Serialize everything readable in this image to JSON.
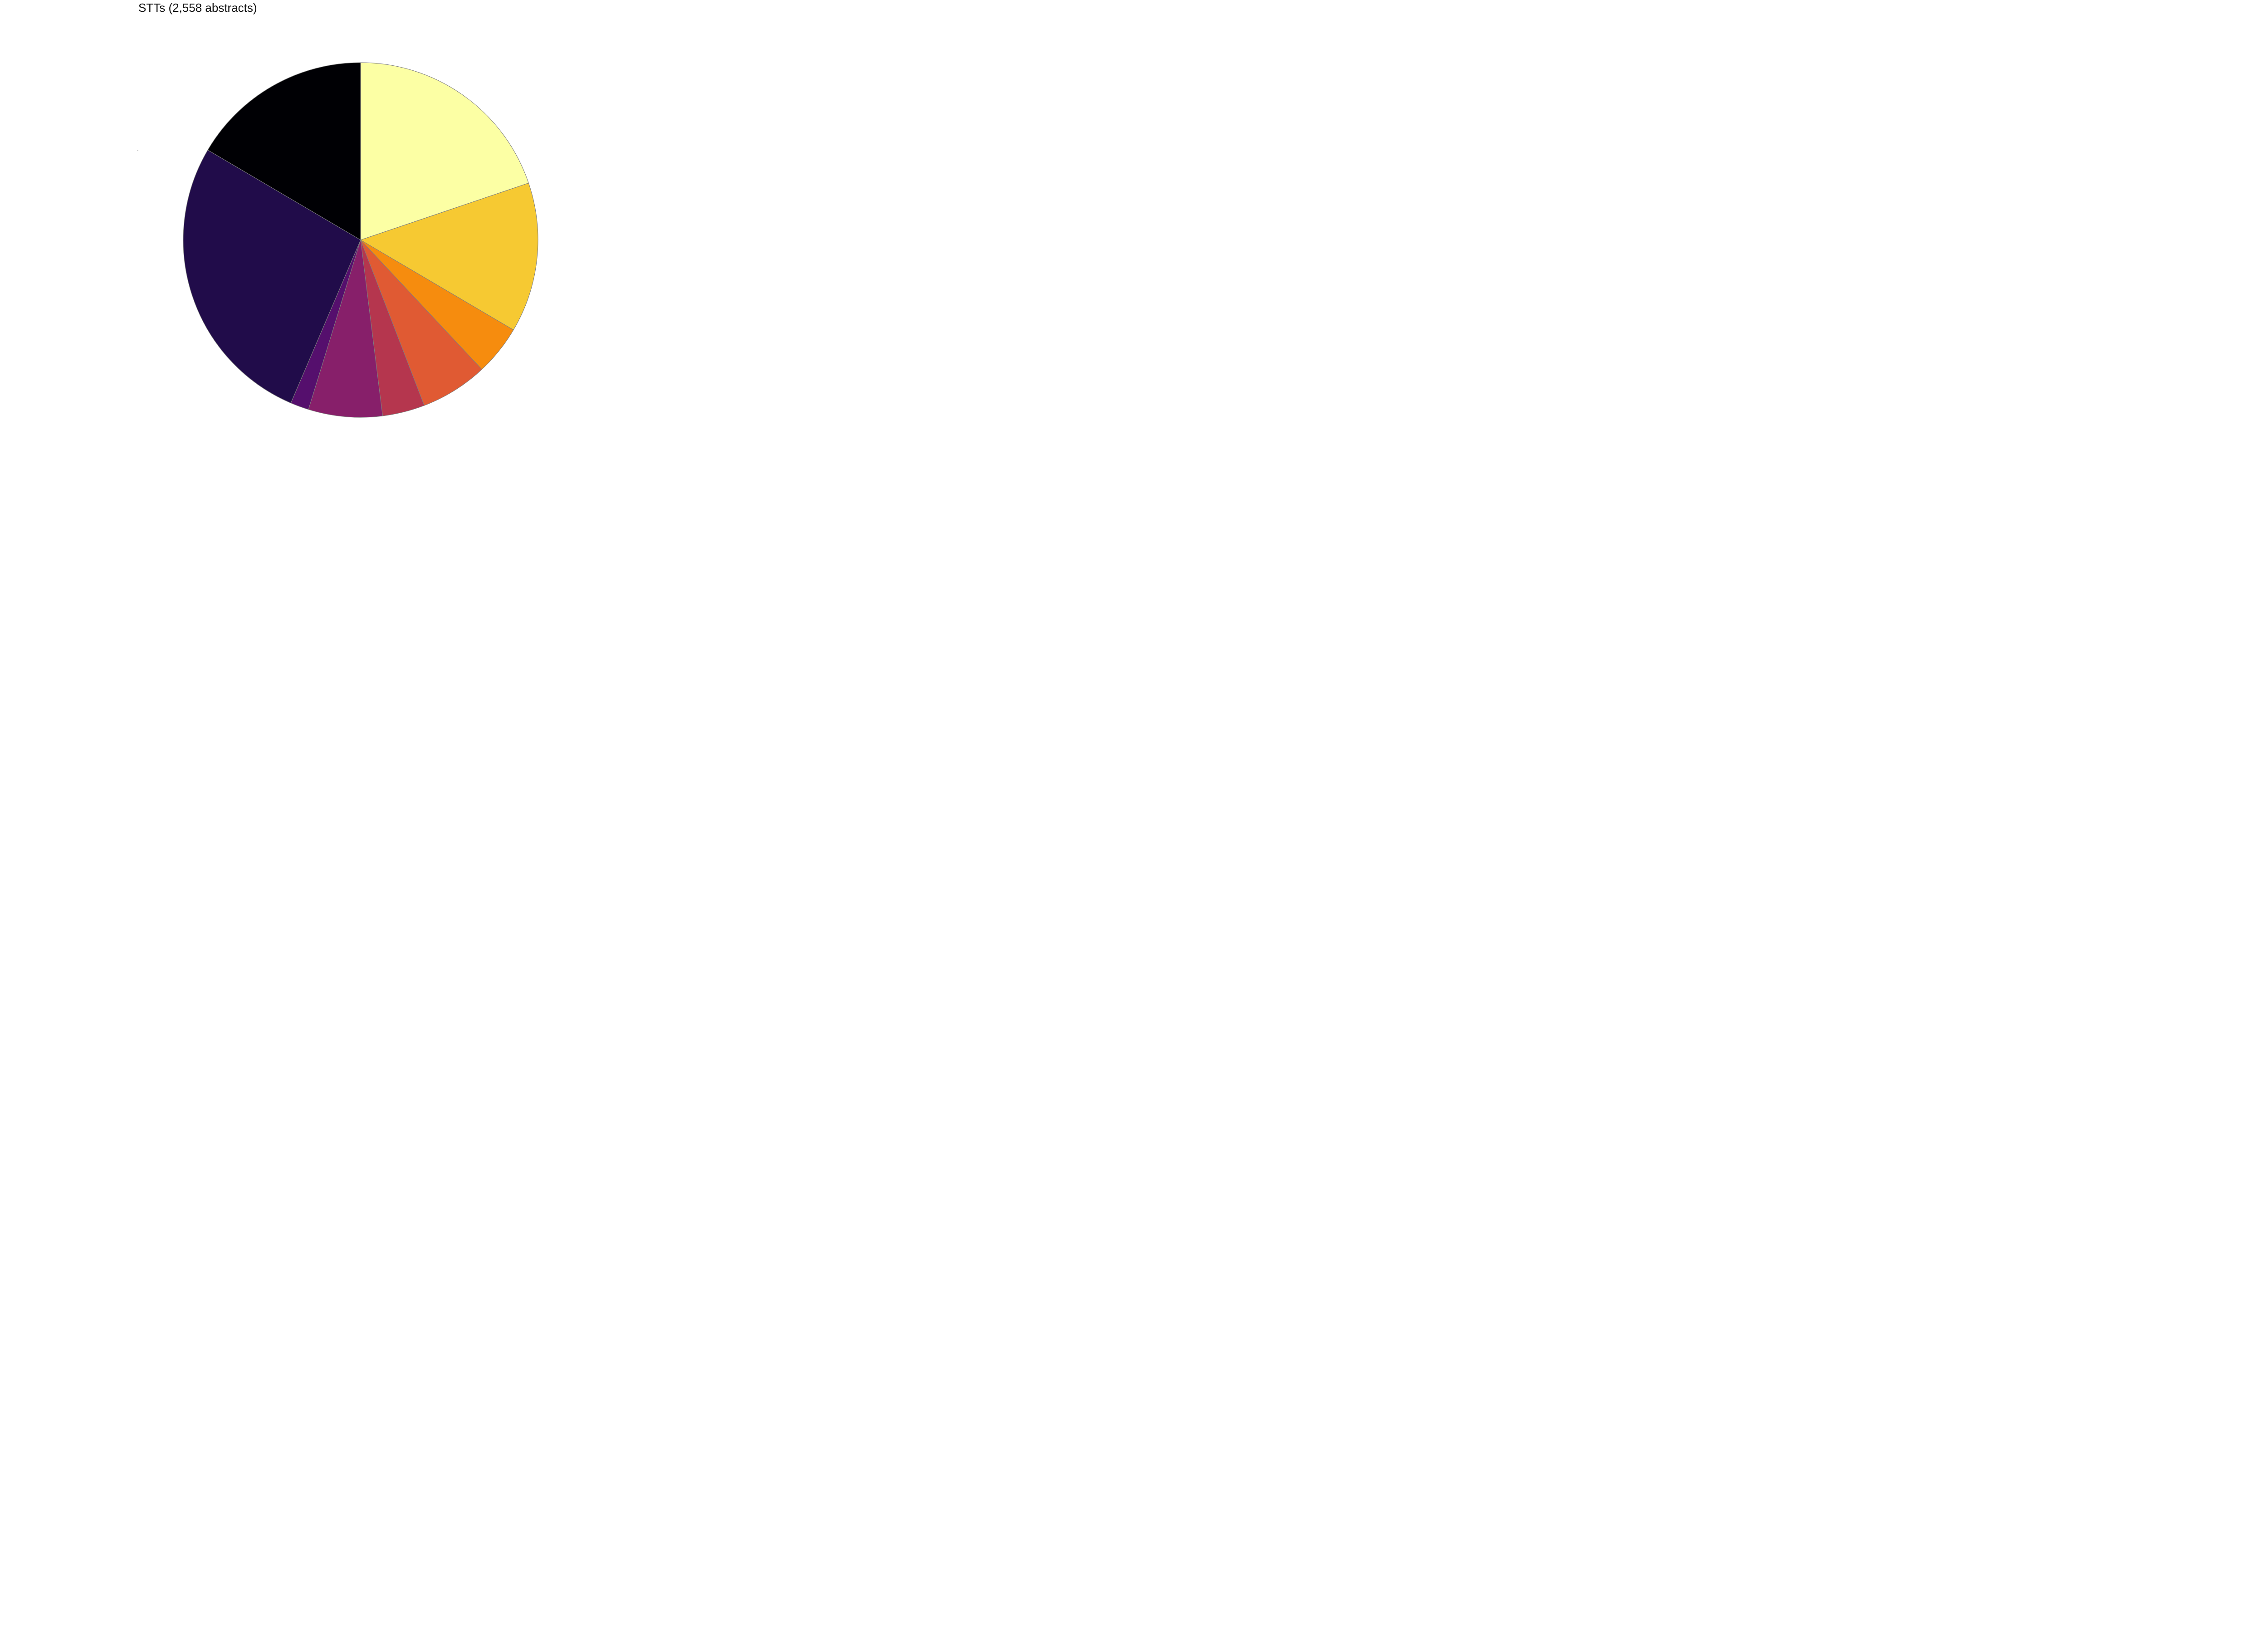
{
  "chart_data": {
    "type": "pie",
    "title": "STTs (2,558 abstracts)",
    "start_angle_deg_clockwise_from_top": 0,
    "direction": "clockwise",
    "legend": "none",
    "slices": [
      {
        "value": 20.0,
        "color": "#fcffa4"
      },
      {
        "value": 13.8,
        "color": "#f6c932"
      },
      {
        "value": 4.6,
        "color": "#f68c0e"
      },
      {
        "value": 6.2,
        "color": "#e05a33"
      },
      {
        "value": 3.9,
        "color": "#b5364e"
      },
      {
        "value": 6.8,
        "color": "#871f6a"
      },
      {
        "value": 1.7,
        "color": "#550f6d"
      },
      {
        "value": 27.3,
        "color": "#210c4a"
      },
      {
        "value": 16.7,
        "color": "#000004"
      }
    ]
  }
}
